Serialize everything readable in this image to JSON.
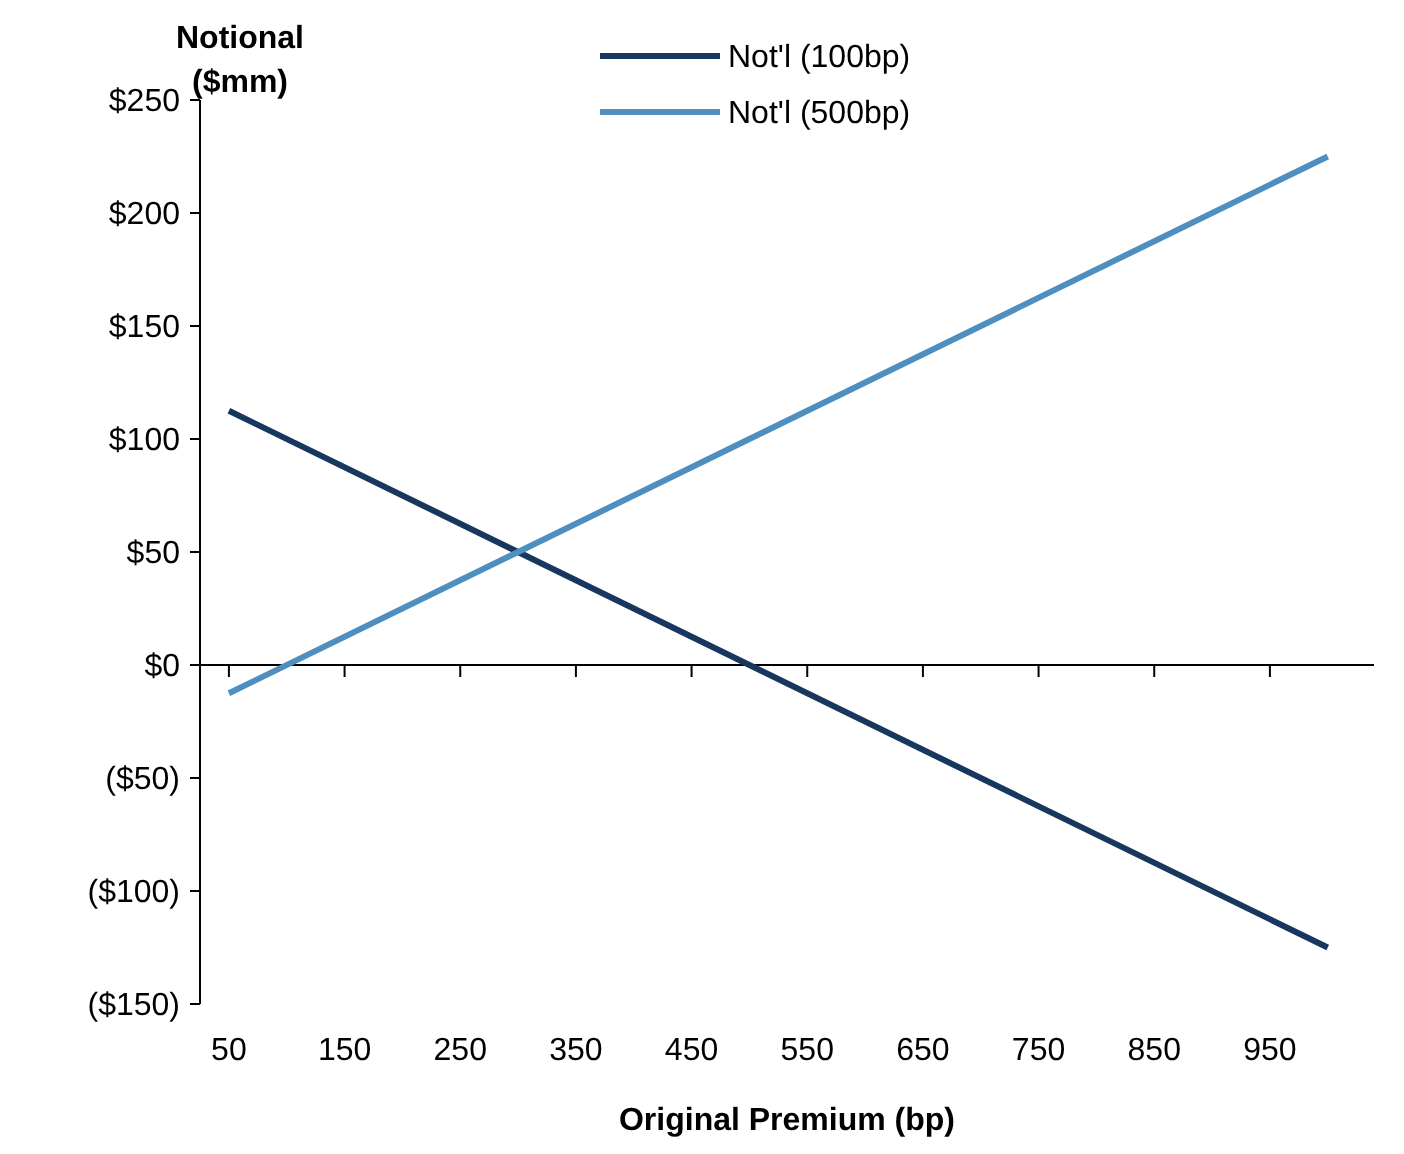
{
  "chart_data": {
    "type": "line",
    "xlabel": "Original Premium (bp)",
    "ylabel": "Notional ($mm)",
    "x": [
      50,
      300,
      500,
      1000
    ],
    "series": [
      {
        "name": "Not'l (100bp)",
        "color": "#17375e",
        "values": [
          112.5,
          50,
          0,
          -125
        ]
      },
      {
        "name": "Not'l (500bp)",
        "color": "#4f8fc0",
        "values": [
          -12.5,
          50,
          100,
          225
        ]
      }
    ],
    "xlim": [
      25,
      1040
    ],
    "xticks": [
      50,
      150,
      250,
      350,
      450,
      550,
      650,
      750,
      850,
      950
    ],
    "ylim": [
      -150,
      250
    ],
    "yticks": [
      {
        "value": 250,
        "label": "$250"
      },
      {
        "value": 200,
        "label": "$200"
      },
      {
        "value": 150,
        "label": "$150"
      },
      {
        "value": 100,
        "label": "$100"
      },
      {
        "value": 50,
        "label": "$50"
      },
      {
        "value": 0,
        "label": "$0"
      },
      {
        "value": -50,
        "label": "($50)"
      },
      {
        "value": -100,
        "label": "($100)"
      },
      {
        "value": -150,
        "label": "($150)"
      }
    ],
    "legend": "top",
    "marker": "none",
    "line_style": "solid"
  }
}
